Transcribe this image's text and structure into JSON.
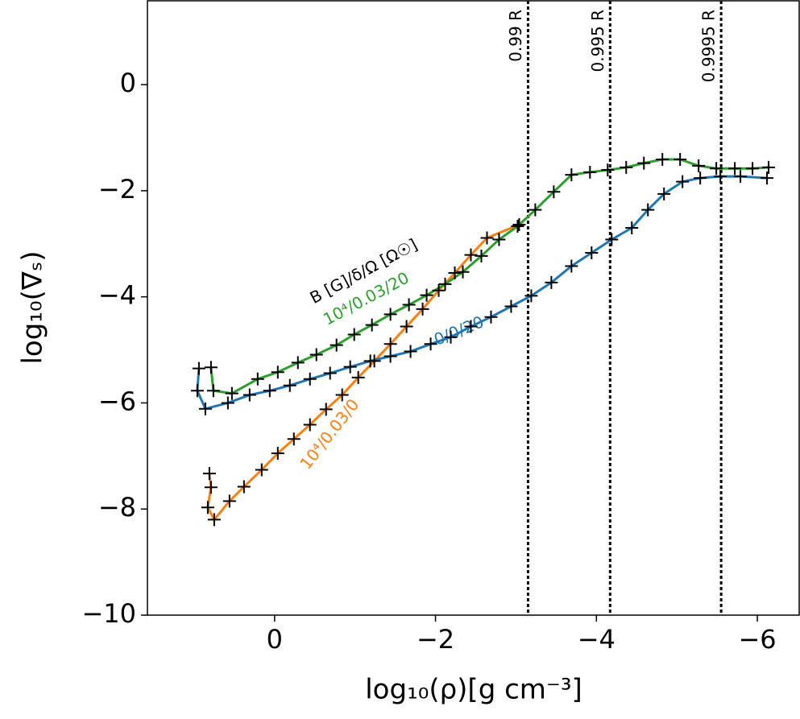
{
  "chart_data": {
    "type": "line",
    "x_label": "log₁₀(ρ)[g cm⁻³]",
    "y_label": "log₁₀(∇ₛ)",
    "legend_title": "B [G]/δ/Ω [Ω☉]",
    "xlim": [
      1.58,
      -6.52
    ],
    "ylim": [
      -10,
      1.58
    ],
    "xticks": [
      0,
      {
        "value": -2,
        "label": "−2"
      },
      {
        "value": -4,
        "label": "−4"
      },
      {
        "value": -6,
        "label": "−6"
      }
    ],
    "yticks": [
      0,
      {
        "value": -2,
        "label": "−2"
      },
      {
        "value": -4,
        "label": "−4"
      },
      {
        "value": -6,
        "label": "−6"
      },
      {
        "value": -8,
        "label": "−8"
      },
      {
        "value": -10,
        "label": "−10"
      }
    ],
    "vlines": [
      {
        "x": -3.15,
        "label": "0.99 R"
      },
      {
        "x": -4.17,
        "label": "0.995 R"
      },
      {
        "x": -5.55,
        "label": "0.9995 R"
      }
    ],
    "series": [
      {
        "name": "10⁴/0.03/20",
        "color": "#2ca02c",
        "x": [
          0.79,
          0.76,
          0.53,
          0.21,
          -0.04,
          -0.29,
          -0.52,
          -0.77,
          -0.99,
          -1.21,
          -1.44,
          -1.67,
          -1.89,
          -2.12,
          -2.34,
          -2.57,
          -2.79,
          -3.02,
          -3.24,
          -3.47,
          -3.69,
          -3.92,
          -4.14,
          -4.37,
          -4.59,
          -4.82,
          -5.04,
          -5.27,
          -5.49,
          -5.72,
          -5.94,
          -6.14
        ],
        "values": [
          -5.33,
          -5.77,
          -5.82,
          -5.55,
          -5.42,
          -5.24,
          -5.09,
          -4.91,
          -4.71,
          -4.53,
          -4.33,
          -4.15,
          -3.97,
          -3.76,
          -3.53,
          -3.23,
          -2.92,
          -2.67,
          -2.36,
          -2.02,
          -1.7,
          -1.65,
          -1.61,
          -1.56,
          -1.48,
          -1.41,
          -1.41,
          -1.53,
          -1.58,
          -1.58,
          -1.58,
          -1.56
        ]
      },
      {
        "name": "0/0/20",
        "color": "#1f77b4",
        "x": [
          0.94,
          0.96,
          0.86,
          0.58,
          0.31,
          0.06,
          -0.19,
          -0.44,
          -0.69,
          -0.94,
          -1.19,
          -1.44,
          -1.69,
          -1.94,
          -2.19,
          -2.44,
          -2.69,
          -2.94,
          -3.19,
          -3.44,
          -3.69,
          -3.94,
          -4.19,
          -4.44,
          -4.64,
          -4.84,
          -5.07,
          -5.29,
          -5.54,
          -5.79,
          -6.12
        ],
        "values": [
          -5.35,
          -5.77,
          -6.11,
          -6.0,
          -5.85,
          -5.77,
          -5.67,
          -5.55,
          -5.44,
          -5.32,
          -5.21,
          -5.12,
          -5.03,
          -4.89,
          -4.76,
          -4.56,
          -4.38,
          -4.18,
          -3.98,
          -3.73,
          -3.42,
          -3.17,
          -2.92,
          -2.7,
          -2.36,
          -2.06,
          -1.83,
          -1.76,
          -1.73,
          -1.73,
          -1.76
        ]
      },
      {
        "name": "10⁴/0.03/0",
        "color": "#ff7f0e",
        "x": [
          0.81,
          0.79,
          0.83,
          0.75,
          0.56,
          0.38,
          0.16,
          -0.04,
          -0.24,
          -0.44,
          -0.64,
          -0.84,
          -1.04,
          -1.24,
          -1.44,
          -1.64,
          -1.84,
          -2.04,
          -2.24,
          -2.44,
          -2.64,
          -3.04
        ],
        "values": [
          -7.33,
          -7.59,
          -7.97,
          -8.2,
          -7.85,
          -7.58,
          -7.26,
          -6.95,
          -6.68,
          -6.41,
          -6.12,
          -5.85,
          -5.52,
          -5.21,
          -4.89,
          -4.56,
          -4.23,
          -3.88,
          -3.55,
          -3.21,
          -2.89,
          -2.64
        ]
      }
    ]
  }
}
